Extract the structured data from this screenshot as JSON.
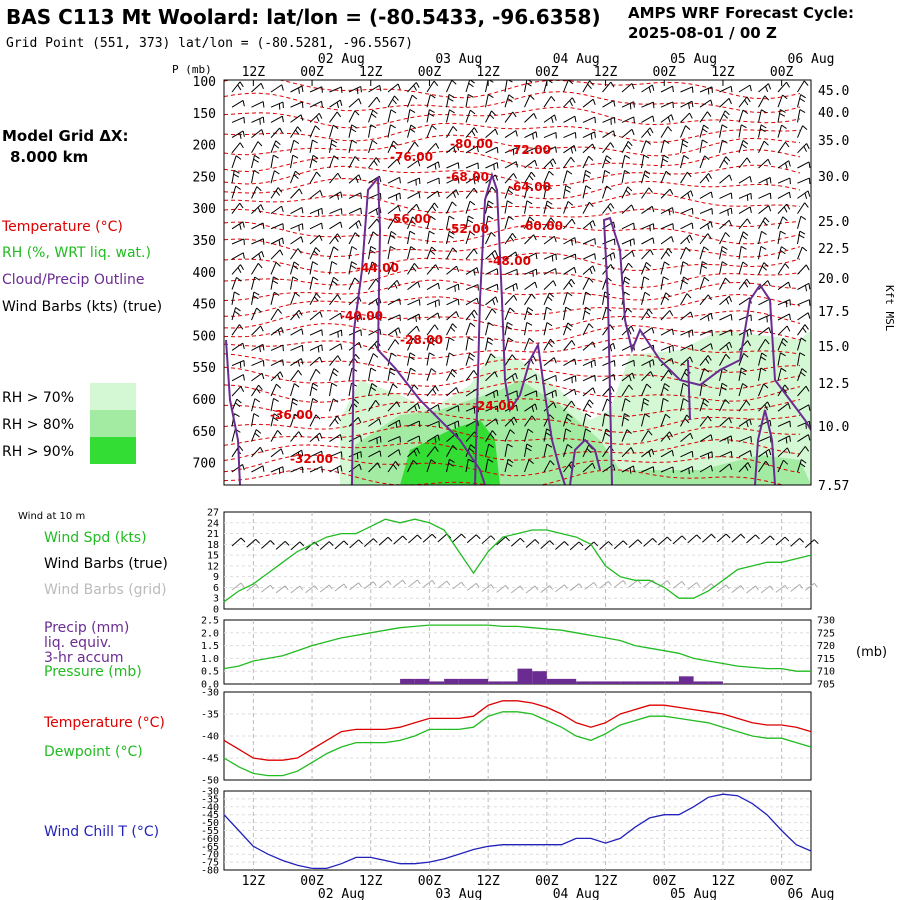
{
  "header": {
    "title": "BAS C113 Mt Woolard:  lat/lon = (-80.5433, -96.6358)",
    "subtitle": "Grid Point (551, 373) lat/lon = (-80.5281, -96.5567)",
    "cycle_label": "AMPS WRF Forecast Cycle:",
    "cycle_value": "2025-08-01 / 00  Z",
    "model_grid_label": "Model Grid ΔX:",
    "model_grid_value": "8.000 km"
  },
  "legend": {
    "temperature": "Temperature (°C)",
    "rh": "RH (%, WRT liq. wat.)",
    "cloud": "Cloud/Precip Outline",
    "wind": "Wind Barbs (kts) (true)",
    "rh70": "RH > 70%",
    "rh80": "RH > 80%",
    "rh90": "RH > 90%",
    "rh_colors": [
      "#d4f7d4",
      "#a3eba3",
      "#33dd33"
    ]
  },
  "time_axis": {
    "hour_ticks": [
      "12Z",
      "00Z",
      "12Z",
      "00Z",
      "12Z",
      "00Z",
      "12Z",
      "00Z",
      "12Z",
      "00Z"
    ],
    "date_ticks": [
      "02 Aug",
      "03 Aug",
      "04 Aug",
      "05 Aug",
      "06 Aug"
    ]
  },
  "chart_data": [
    {
      "type": "line",
      "panel": "vertical cross-section",
      "ylabel": "P (mb)",
      "y_ticks": [
        "100",
        "150",
        "200",
        "250",
        "300",
        "350",
        "400",
        "450",
        "500",
        "550",
        "600",
        "650",
        "700"
      ],
      "right_ticks": [
        "45.0",
        "40.0",
        "35.0",
        "30.0",
        "25.0",
        "22.5",
        "20.0",
        "17.5",
        "15.0",
        "12.5",
        "10.0",
        "7.57"
      ],
      "right_label": "Kft MSL",
      "temperature_labels": [
        "-80.00",
        "-72.00",
        "-76.00",
        "-68.00",
        "-64.00",
        "-56.00",
        "-52.00",
        "-60.00",
        "-44.00",
        "-48.00",
        "-40.00",
        "-28.00",
        "-24.00",
        "-36.00",
        "-32.00"
      ],
      "colors": {
        "temperature": "#dd0000",
        "cloud": "#6a2c91",
        "barbs": "#000000"
      }
    },
    {
      "type": "line",
      "panel": "wind",
      "title": "Wind at 10 m",
      "labels": [
        "Wind Spd (kts)",
        "Wind Barbs (true)",
        "Wind Barbs (grid)"
      ],
      "y_ticks": [
        "27",
        "24",
        "21",
        "18",
        "15",
        "12",
        "9",
        "6",
        "3",
        "0"
      ],
      "ylim": [
        0,
        27
      ],
      "x": [
        0,
        3,
        6,
        9,
        12,
        15,
        18,
        21,
        24,
        27,
        30,
        33,
        36,
        39,
        42,
        45,
        48,
        51,
        54,
        57,
        60,
        63,
        66,
        69,
        72,
        75,
        78,
        81,
        84,
        87,
        90,
        93,
        96,
        99,
        102,
        105,
        108,
        111,
        114,
        117,
        120
      ],
      "series": [
        {
          "name": "Wind Spd (kts)",
          "color": "#22bb22",
          "values": [
            2,
            5,
            7,
            10,
            13,
            16,
            18,
            20,
            21,
            21,
            23,
            25,
            24,
            25,
            24,
            22,
            16,
            10,
            16,
            20,
            21,
            22,
            22,
            21,
            20,
            18,
            12,
            9,
            8,
            8,
            6,
            3,
            3,
            5,
            8,
            11,
            12,
            13,
            13,
            14,
            15
          ]
        }
      ]
    },
    {
      "type": "bar",
      "panel": "precip and pressure",
      "labels": [
        "Precip (mm)",
        "liq. equiv.",
        "3-hr accum",
        "Pressure (mb)"
      ],
      "y_ticks": [
        "2.5",
        "2.0",
        "1.5",
        "1.0",
        "0.5",
        "0.0"
      ],
      "right_ticks": [
        "730",
        "725",
        "720",
        "715",
        "710",
        "705"
      ],
      "right_label": "(mb)",
      "ylim": [
        0,
        2.5
      ],
      "right_ylim": [
        705,
        730
      ],
      "x": [
        0,
        3,
        6,
        9,
        12,
        15,
        18,
        21,
        24,
        27,
        30,
        33,
        36,
        39,
        42,
        45,
        48,
        51,
        54,
        57,
        60,
        63,
        66,
        69,
        72,
        75,
        78,
        81,
        84,
        87,
        90,
        93,
        96,
        99,
        102,
        105,
        108,
        111,
        114,
        117,
        120
      ],
      "series": [
        {
          "name": "Precip (mm)",
          "color": "#6a2c91",
          "type": "bar",
          "values": [
            0,
            0,
            0,
            0,
            0,
            0,
            0,
            0,
            0,
            0,
            0,
            0,
            0.2,
            0.2,
            0.1,
            0.2,
            0.2,
            0.2,
            0.1,
            0.1,
            0.6,
            0.5,
            0.2,
            0.2,
            0.1,
            0.1,
            0.1,
            0.1,
            0.1,
            0.1,
            0.1,
            0.3,
            0.1,
            0.1,
            0,
            0,
            0,
            0,
            0,
            0,
            0
          ]
        },
        {
          "name": "Pressure (mb)",
          "color": "#22bb22",
          "type": "line",
          "axis": "right",
          "values": [
            711,
            712,
            714,
            715,
            716,
            718,
            720,
            721.5,
            723,
            724,
            725,
            726,
            727,
            727.5,
            728,
            728,
            728,
            728,
            728,
            727.5,
            727.5,
            727,
            726.5,
            726,
            725,
            724,
            723,
            722,
            720,
            719,
            718,
            717,
            715,
            714,
            713,
            712,
            711.5,
            711,
            711,
            710,
            710
          ]
        }
      ]
    },
    {
      "type": "line",
      "panel": "temperature",
      "labels": [
        "Temperature (°C)",
        "Dewpoint (°C)"
      ],
      "y_ticks": [
        "-30",
        "-35",
        "-40",
        "-45",
        "-50"
      ],
      "ylim": [
        -50,
        -30
      ],
      "x": [
        0,
        3,
        6,
        9,
        12,
        15,
        18,
        21,
        24,
        27,
        30,
        33,
        36,
        39,
        42,
        45,
        48,
        51,
        54,
        57,
        60,
        63,
        66,
        69,
        72,
        75,
        78,
        81,
        84,
        87,
        90,
        93,
        96,
        99,
        102,
        105,
        108,
        111,
        114,
        117,
        120
      ],
      "series": [
        {
          "name": "Temperature (°C)",
          "color": "#dd0000",
          "values": [
            -41,
            -43,
            -45,
            -45.5,
            -45.5,
            -45,
            -43,
            -41,
            -39,
            -38.5,
            -38.5,
            -38.5,
            -38,
            -37,
            -36,
            -36,
            -36,
            -35.5,
            -33,
            -32,
            -32,
            -32.5,
            -33.5,
            -35,
            -37,
            -38,
            -37,
            -35,
            -34,
            -33,
            -33,
            -33.5,
            -34,
            -34.5,
            -35,
            -36,
            -37,
            -37.5,
            -37.5,
            -38,
            -39
          ]
        },
        {
          "name": "Dewpoint (°C)",
          "color": "#22bb22",
          "values": [
            -45,
            -47,
            -48.5,
            -49,
            -49,
            -48,
            -46,
            -44,
            -42.5,
            -41.5,
            -41.5,
            -41.5,
            -41,
            -40,
            -38.5,
            -38.5,
            -38.5,
            -38,
            -35.5,
            -34.5,
            -34.5,
            -35,
            -36.5,
            -38,
            -40,
            -41,
            -39.5,
            -37.5,
            -36.5,
            -35.5,
            -35.5,
            -36,
            -36.5,
            -37,
            -38,
            -39,
            -40,
            -40.5,
            -40.5,
            -41.5,
            -42.5
          ]
        }
      ]
    },
    {
      "type": "line",
      "panel": "wind chill",
      "labels": [
        "Wind Chill T (°C)"
      ],
      "y_ticks": [
        "-30",
        "-35",
        "-40",
        "-45",
        "-50",
        "-55",
        "-60",
        "-65",
        "-70",
        "-75",
        "-80"
      ],
      "ylim": [
        -80,
        -30
      ],
      "x": [
        0,
        3,
        6,
        9,
        12,
        15,
        18,
        21,
        24,
        27,
        30,
        33,
        36,
        39,
        42,
        45,
        48,
        51,
        54,
        57,
        60,
        63,
        66,
        69,
        72,
        75,
        78,
        81,
        84,
        87,
        90,
        93,
        96,
        99,
        102,
        105,
        108,
        111,
        114,
        117,
        120
      ],
      "series": [
        {
          "name": "Wind Chill T (°C)",
          "color": "#2222bb",
          "values": [
            -45,
            -55,
            -65,
            -70,
            -74,
            -77,
            -79,
            -79,
            -76,
            -72,
            -72,
            -74,
            -76,
            -76,
            -75,
            -73,
            -70,
            -67,
            -65,
            -64,
            -64,
            -64,
            -64,
            -64,
            -60,
            -60,
            -63,
            -60,
            -53,
            -47,
            -45,
            -45,
            -40,
            -34,
            -32,
            -33,
            -38,
            -45,
            -55,
            -64,
            -68
          ]
        }
      ]
    }
  ]
}
